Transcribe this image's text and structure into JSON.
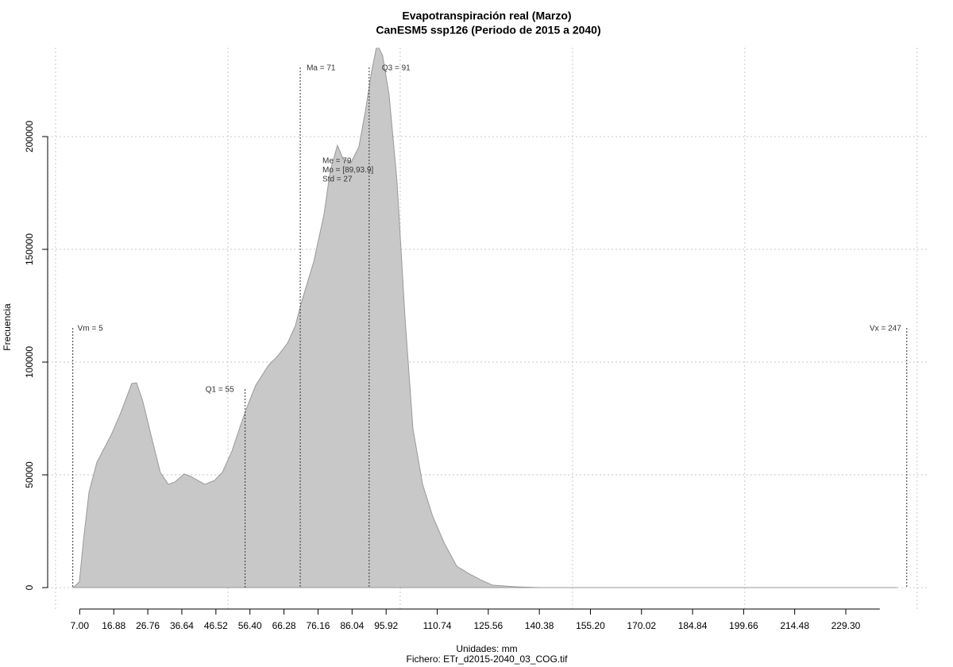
{
  "chart_data": {
    "type": "area",
    "title": "Evapotranspiración real (Marzo)",
    "subtitle": "CanESM5 ssp126 (Periodo de 2015 a 2040)",
    "x_label": "Unidades: mm",
    "caption": "Fichero: ETr_d2015-2040_03_COG.tif",
    "y_label": "Frecuencia",
    "x": [
      5.1,
      6.9,
      8.1,
      9.7,
      12.0,
      16.1,
      18.9,
      22.1,
      23.5,
      25.3,
      28.1,
      30.4,
      32.7,
      34.6,
      37.3,
      39.2,
      43.3,
      46.1,
      48.4,
      51.2,
      54.1,
      55.8,
      58.1,
      61.8,
      64.5,
      67.3,
      69.6,
      71.4,
      74.9,
      77.9,
      79.7,
      81.8,
      83.4,
      85.7,
      88.0,
      89.9,
      91.7,
      93.3,
      94.9,
      96.8,
      99.1,
      101.4,
      103.7,
      106.5,
      109.4,
      112.9,
      116.4,
      119.8,
      123.3,
      126.7,
      133.6,
      140.6,
      244.2
    ],
    "values": [
      0,
      2500,
      21100,
      42300,
      55600,
      67600,
      77500,
      90500,
      90800,
      82700,
      65100,
      51100,
      45800,
      46800,
      50400,
      49300,
      45800,
      47500,
      51100,
      60600,
      73900,
      81000,
      89800,
      98600,
      102800,
      108400,
      116200,
      126800,
      144400,
      165500,
      184900,
      196100,
      190100,
      188400,
      195400,
      211300,
      228900,
      241000,
      235900,
      218300,
      179600,
      119700,
      70400,
      45800,
      31700,
      19400,
      9500,
      6300,
      3500,
      1100,
      350,
      0,
      0
    ],
    "color": "#c8c8c8",
    "line_color": "#999999",
    "xlim": [
      -2.3,
      253.5
    ],
    "ylim": [
      -9860,
      239440
    ],
    "xticks": [
      {
        "value": 7,
        "label": "7.00"
      },
      16.88,
      26.76,
      36.64,
      46.52,
      {
        "value": 56.4,
        "label": "56.40"
      },
      66.28,
      76.16,
      86.04,
      95.92,
      110.74,
      125.56,
      140.38,
      {
        "value": 155.2,
        "label": "155.20"
      },
      170.02,
      184.84,
      199.66,
      214.48,
      {
        "value": 229.3,
        "label": "229.30"
      }
    ],
    "yticks": [
      0,
      50000,
      100000,
      150000,
      200000
    ],
    "xgrid": [
      0,
      50,
      100,
      150,
      200,
      250
    ],
    "grid": true,
    "markers": [
      {
        "label": "Vm = 5",
        "x": 5
      },
      {
        "label": "Q1 = 55",
        "x": 55
      },
      {
        "label": "Ma = 71",
        "x": 71
      },
      {
        "label": "Q3 = 91",
        "x": 91
      },
      {
        "label": "Vx = 247",
        "x": 247
      }
    ],
    "stats_text": [
      "Me = 79",
      "Mo = [89,93.9]",
      "Std = 27"
    ]
  }
}
